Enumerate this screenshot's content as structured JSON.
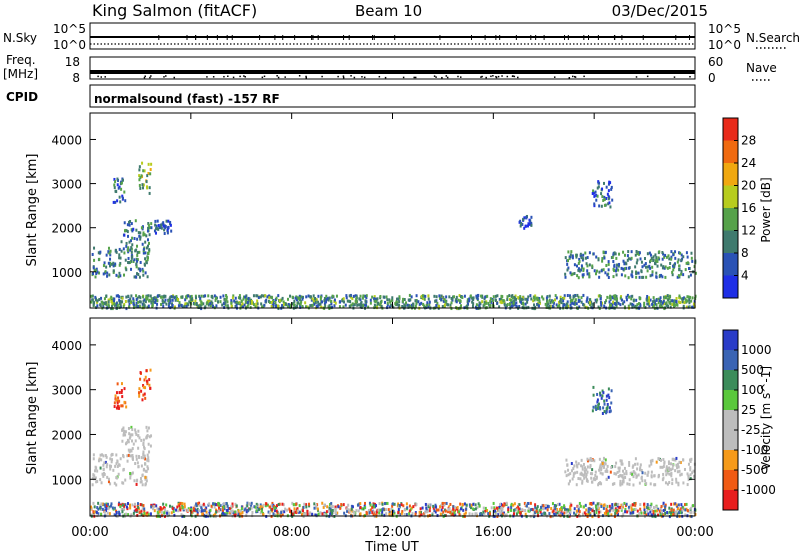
{
  "header": {
    "station": "King Salmon (fitACF)",
    "beam": "Beam 10",
    "date": "03/Dec/2015"
  },
  "strips": {
    "nsky_label": "N.Sky",
    "nsky_ticks": [
      "10^5",
      "10^0"
    ],
    "nsearch_label": "N.Search",
    "nsearch_ticks": [
      "10^5",
      "10^0"
    ],
    "freq_label": "Freq.",
    "freq_unit": "[MHz]",
    "freq_ticks": [
      "18",
      "8"
    ],
    "nave_label": "Nave",
    "nave_ticks": [
      "60",
      "0"
    ],
    "cpid_label": "CPID",
    "cpid_text": "normalsound (fast) -157 RF"
  },
  "colors": {
    "power": [
      "#1f2fe6",
      "#2a52b5",
      "#3f7a6e",
      "#56a24a",
      "#b7cc1e",
      "#f0a810",
      "#f06a10",
      "#e82a1a"
    ],
    "velocity": [
      "#e81e1e",
      "#f05a14",
      "#f59a1a",
      "#bdbdbd",
      "#bdbdbd",
      "#5ac83c",
      "#3c8c5a",
      "#3a64b4",
      "#2a3cc8"
    ],
    "ground_scatter": "#bdbdbd"
  },
  "chart_data": [
    {
      "type": "heatmap",
      "panel": "power",
      "ylabel": "Slant Range [km]",
      "yticks": [
        "1000",
        "2000",
        "3000",
        "4000"
      ],
      "ylim": [
        180,
        4600
      ],
      "colorbar_label": "Power [dB]",
      "colorbar_ticks": [
        "4",
        "8",
        "12",
        "16",
        "20",
        "24",
        "28"
      ],
      "zlim": [
        0,
        30
      ],
      "regions": [
        {
          "t": [
            0.05,
            2.3
          ],
          "r": [
            900,
            1600
          ],
          "v": 10
        },
        {
          "t": [
            1.2,
            2.4
          ],
          "r": [
            1500,
            2200
          ],
          "v": 9
        },
        {
          "t": [
            0.9,
            1.4
          ],
          "r": [
            2600,
            3200
          ],
          "v": 9
        },
        {
          "t": [
            1.9,
            2.4
          ],
          "r": [
            2800,
            3500
          ],
          "v": 15
        },
        {
          "t": [
            2.5,
            3.2
          ],
          "r": [
            1900,
            2200
          ],
          "v": 6
        },
        {
          "t": [
            17.0,
            17.5
          ],
          "r": [
            2000,
            2300
          ],
          "v": 6
        },
        {
          "t": [
            19.9,
            20.7
          ],
          "r": [
            2500,
            3100
          ],
          "v": 7
        },
        {
          "t": [
            18.8,
            24.0
          ],
          "r": [
            900,
            1500
          ],
          "v": 10
        },
        {
          "t": [
            0.0,
            24.0
          ],
          "r": [
            200,
            500
          ],
          "v": 11
        }
      ]
    },
    {
      "type": "heatmap",
      "panel": "velocity",
      "ylabel": "Slant Range [km]",
      "yticks": [
        "1000",
        "2000",
        "3000",
        "4000"
      ],
      "ylim": [
        180,
        4600
      ],
      "xlabel": "Time UT",
      "xticks": [
        "00:00",
        "04:00",
        "08:00",
        "12:00",
        "16:00",
        "20:00",
        "00:00"
      ],
      "xlim": [
        0,
        24
      ],
      "colorbar_label": "Velocity [m s^-1]",
      "colorbar_ticks": [
        "-1000",
        "-500",
        "-100",
        "-25",
        "25",
        "100",
        "500",
        "1000"
      ],
      "regions": [
        {
          "t": [
            0.05,
            2.3
          ],
          "r": [
            900,
            1600
          ],
          "v": "ground"
        },
        {
          "t": [
            1.2,
            2.4
          ],
          "r": [
            1500,
            2200
          ],
          "v": "ground"
        },
        {
          "t": [
            0.9,
            1.4
          ],
          "r": [
            2600,
            3200
          ],
          "v": -600
        },
        {
          "t": [
            1.9,
            2.4
          ],
          "r": [
            2800,
            3500
          ],
          "v": -500
        },
        {
          "t": [
            19.9,
            20.7
          ],
          "r": [
            2500,
            3100
          ],
          "v": 600
        },
        {
          "t": [
            18.8,
            24.0
          ],
          "r": [
            900,
            1500
          ],
          "v": "ground"
        },
        {
          "t": [
            0.0,
            24.0
          ],
          "r": [
            200,
            500
          ],
          "v": "mixed"
        }
      ]
    }
  ]
}
